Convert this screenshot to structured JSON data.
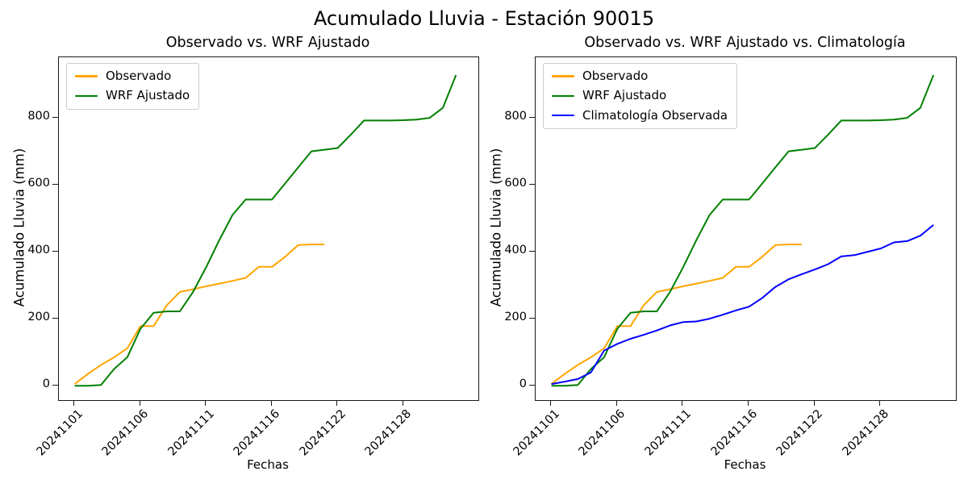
{
  "figure_title": "Acumulado Lluvia - Estación 90015",
  "colors": {
    "observado": "#FFA500",
    "wrf_ajustado": "#008000",
    "climatologia": "#0000FF",
    "spine": "#1a1a1a",
    "legend_border": "#cccccc"
  },
  "chart_data": [
    {
      "type": "line",
      "title": "Observado vs. WRF Ajustado",
      "xlabel": "Fechas",
      "ylabel": "Acumulado Lluvia (mm)",
      "grid": false,
      "legend_position": "upper left",
      "x": [
        "20241101",
        "20241102",
        "20241103",
        "20241104",
        "20241105",
        "20241106",
        "20241107",
        "20241108",
        "20241109",
        "20241110",
        "20241111",
        "20241112",
        "20241113",
        "20241114",
        "20241115",
        "20241116",
        "20241117",
        "20241118",
        "20241119",
        "20241120",
        "20241122",
        "20241123",
        "20241124",
        "20241125",
        "20241126",
        "20241128",
        "20241129",
        "20241130",
        "20241201",
        "20241202"
      ],
      "xtick_indices": [
        0,
        5,
        10,
        15,
        20,
        25
      ],
      "xtick_labels": [
        "20241101",
        "20241106",
        "20241111",
        "20241116",
        "20241122",
        "20241128"
      ],
      "yticks": [
        0,
        200,
        400,
        600,
        800
      ],
      "xlim": [
        -1.2,
        30.7
      ],
      "ylim": [
        -43,
        981
      ],
      "series": [
        {
          "name": "Observado",
          "color": "#FFA500",
          "values": [
            5,
            35,
            62,
            85,
            112,
            178,
            178,
            240,
            280,
            288,
            297,
            305,
            313,
            322,
            355,
            355,
            385,
            420,
            422,
            422
          ]
        },
        {
          "name": "WRF Ajustado",
          "color": "#008000",
          "values": [
            0,
            0,
            2,
            50,
            85,
            170,
            218,
            222,
            222,
            280,
            354,
            435,
            510,
            556,
            556,
            556,
            604,
            652,
            700,
            705,
            710,
            750,
            792,
            792,
            792,
            793,
            795,
            800,
            830,
            928
          ]
        }
      ]
    },
    {
      "type": "line",
      "title": "Observado vs. WRF Ajustado vs. Climatología",
      "xlabel": "Fechas",
      "ylabel": "Acumulado Lluvia (mm)",
      "grid": false,
      "legend_position": "upper left",
      "x": [
        "20241101",
        "20241102",
        "20241103",
        "20241104",
        "20241105",
        "20241106",
        "20241107",
        "20241108",
        "20241109",
        "20241110",
        "20241111",
        "20241112",
        "20241113",
        "20241114",
        "20241115",
        "20241116",
        "20241117",
        "20241118",
        "20241119",
        "20241120",
        "20241122",
        "20241123",
        "20241124",
        "20241125",
        "20241126",
        "20241128",
        "20241129",
        "20241130",
        "20241201",
        "20241202"
      ],
      "xtick_indices": [
        0,
        5,
        10,
        15,
        20,
        25
      ],
      "xtick_labels": [
        "20241101",
        "20241106",
        "20241111",
        "20241116",
        "20241122",
        "20241128"
      ],
      "yticks": [
        0,
        200,
        400,
        600,
        800
      ],
      "xlim": [
        -1.2,
        30.7
      ],
      "ylim": [
        -43,
        981
      ],
      "series": [
        {
          "name": "Observado",
          "color": "#FFA500",
          "values": [
            5,
            35,
            62,
            85,
            112,
            178,
            178,
            240,
            280,
            288,
            297,
            305,
            313,
            322,
            355,
            355,
            385,
            420,
            422,
            422
          ]
        },
        {
          "name": "WRF Ajustado",
          "color": "#008000",
          "values": [
            0,
            0,
            2,
            50,
            85,
            170,
            218,
            222,
            222,
            280,
            354,
            435,
            510,
            556,
            556,
            556,
            604,
            652,
            700,
            705,
            710,
            750,
            792,
            792,
            792,
            793,
            795,
            800,
            830,
            928
          ]
        },
        {
          "name": "Climatología Observada",
          "color": "#0000FF",
          "values": [
            5,
            12,
            20,
            40,
            105,
            125,
            140,
            152,
            165,
            180,
            190,
            192,
            200,
            212,
            225,
            236,
            262,
            295,
            318,
            333,
            347,
            363,
            386,
            390,
            400,
            410,
            428,
            432,
            448,
            480
          ]
        }
      ]
    }
  ]
}
